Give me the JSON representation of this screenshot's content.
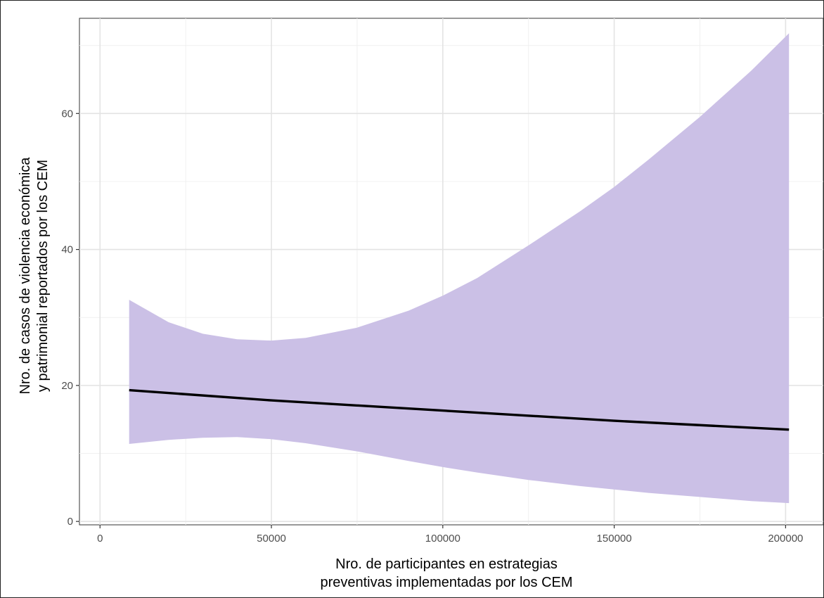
{
  "chart_data": {
    "type": "line",
    "xlabel_lines": [
      "Nro. de participantes en estrategias",
      "preventivas implementadas por los CEM"
    ],
    "ylabel_lines": [
      "Nro. de casos de violencia económica",
      "y patrimonial reportados por los CEM"
    ],
    "xlim": [
      -6000,
      211000
    ],
    "ylim": [
      -0.5,
      74
    ],
    "x_ticks": [
      0,
      50000,
      100000,
      150000,
      200000
    ],
    "x_tick_labels": [
      "0",
      "50000",
      "100000",
      "150000",
      "200000"
    ],
    "y_ticks": [
      0,
      20,
      40,
      60
    ],
    "y_tick_labels": [
      "0",
      "20",
      "40",
      "60"
    ],
    "x_minor": [
      25000,
      75000,
      125000,
      175000
    ],
    "y_minor": [
      10,
      30,
      50,
      70
    ],
    "grid": true,
    "colors": {
      "band": "#cbc0e6",
      "line": "#000000",
      "grid_major": "#e3e3e3",
      "grid_minor": "#f0f0f0",
      "panel_border": "#333333"
    },
    "series": [
      {
        "type": "line",
        "x": [
          8500,
          50000,
          100000,
          150000,
          201000
        ],
        "y": [
          19.3,
          17.8,
          16.3,
          14.8,
          13.5
        ]
      },
      {
        "type": "band",
        "x": [
          8500,
          20000,
          30000,
          40000,
          50000,
          60000,
          75000,
          90000,
          100000,
          110000,
          125000,
          140000,
          150000,
          160000,
          175000,
          190000,
          201000
        ],
        "lower": [
          11.4,
          12.0,
          12.3,
          12.4,
          12.1,
          11.5,
          10.3,
          8.9,
          8.0,
          7.2,
          6.1,
          5.2,
          4.7,
          4.2,
          3.6,
          3.0,
          2.7
        ],
        "upper": [
          32.6,
          29.3,
          27.6,
          26.8,
          26.6,
          27.0,
          28.5,
          31.0,
          33.2,
          35.8,
          40.6,
          45.6,
          49.2,
          53.2,
          59.5,
          66.3,
          71.8
        ]
      }
    ]
  }
}
